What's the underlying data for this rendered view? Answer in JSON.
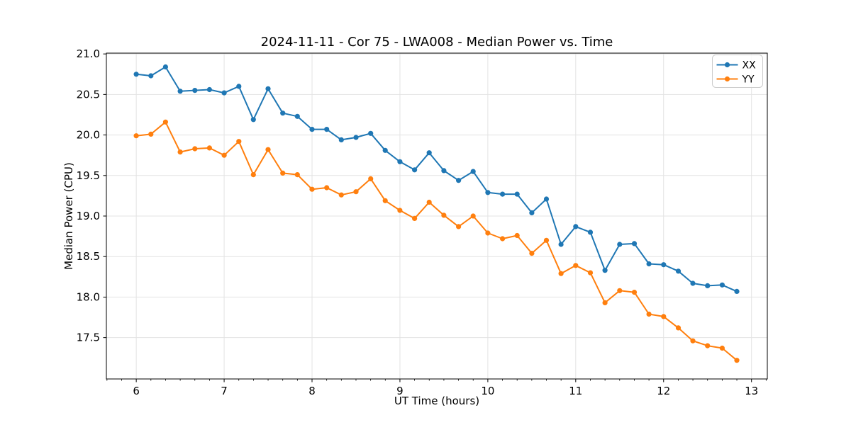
{
  "chart_data": {
    "type": "line",
    "title": "2024-11-11 - Cor 75 - LWA008 - Median Power vs. Time",
    "xlabel": "UT Time (hours)",
    "ylabel": "Median Power (CPU)",
    "xlim": [
      5.66,
      13.18
    ],
    "ylim": [
      16.99,
      21.01
    ],
    "x_ticks": [
      6,
      7,
      8,
      9,
      10,
      11,
      12,
      13
    ],
    "y_ticks": [
      17.5,
      18.0,
      18.5,
      19.0,
      19.5,
      20.0,
      20.5,
      21.0
    ],
    "x_minor_per_major": 6,
    "grid": true,
    "grid_color": "#e3e3e3",
    "axis_color": "#000000",
    "legend": {
      "position": "upper-right",
      "entries": [
        "XX",
        "YY"
      ]
    },
    "x": [
      6.0,
      6.167,
      6.333,
      6.5,
      6.667,
      6.833,
      7.0,
      7.167,
      7.333,
      7.5,
      7.667,
      7.833,
      8.0,
      8.167,
      8.333,
      8.5,
      8.667,
      8.833,
      9.0,
      9.167,
      9.333,
      9.5,
      9.667,
      9.833,
      10.0,
      10.167,
      10.333,
      10.5,
      10.667,
      10.833,
      11.0,
      11.167,
      11.333,
      11.5,
      11.667,
      11.833,
      12.0,
      12.167,
      12.333,
      12.5,
      12.667,
      12.833
    ],
    "series": [
      {
        "name": "XX",
        "color": "#1f77b4",
        "values": [
          20.75,
          20.73,
          20.84,
          20.54,
          20.55,
          20.56,
          20.52,
          20.6,
          20.19,
          20.57,
          20.27,
          20.23,
          20.07,
          20.07,
          19.94,
          19.97,
          20.02,
          19.81,
          19.67,
          19.57,
          19.78,
          19.56,
          19.44,
          19.55,
          19.29,
          19.27,
          19.27,
          19.04,
          19.21,
          18.65,
          18.87,
          18.8,
          18.33,
          18.65,
          18.66,
          18.41,
          18.4,
          18.32,
          18.17,
          18.14,
          18.15,
          18.07
        ]
      },
      {
        "name": "YY",
        "color": "#ff7f0e",
        "values": [
          19.99,
          20.01,
          20.16,
          19.79,
          19.83,
          19.84,
          19.75,
          19.92,
          19.51,
          19.82,
          19.53,
          19.51,
          19.33,
          19.35,
          19.26,
          19.3,
          19.46,
          19.19,
          19.07,
          18.97,
          19.17,
          19.01,
          18.87,
          19.0,
          18.79,
          18.72,
          18.76,
          18.54,
          18.7,
          18.29,
          18.39,
          18.3,
          17.93,
          18.08,
          18.06,
          17.79,
          17.76,
          17.62,
          17.46,
          17.4,
          17.37,
          17.22
        ]
      }
    ]
  }
}
